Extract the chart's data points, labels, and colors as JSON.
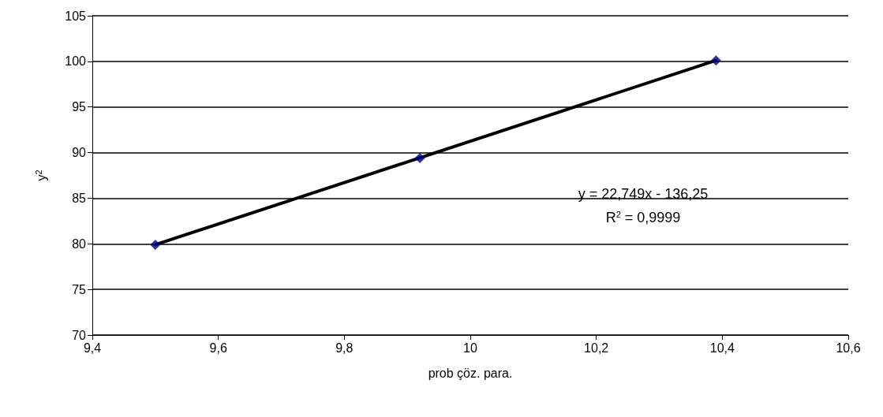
{
  "chart_data": {
    "type": "scatter",
    "xlabel": "prob çöz. para.",
    "ylabel": "y$^{2}$",
    "series": [
      {
        "color": "#000080",
        "marker": "diamond",
        "x": [
          9.5,
          9.92,
          10.39
        ],
        "values": [
          79.9,
          89.4,
          100.1
        ]
      },
      {
        "type": "line",
        "color": "#000000",
        "marker": "none",
        "line_style": "solid",
        "x": [
          9.5,
          10.39
        ],
        "values": [
          79.9,
          100.1
        ]
      }
    ],
    "xlim": [
      9.4,
      10.6
    ],
    "xticks": [
      {
        "value": 9.4,
        "label": "9,4"
      },
      {
        "value": 9.6,
        "label": "9,6"
      },
      {
        "value": 9.8,
        "label": "9,8"
      },
      10,
      {
        "value": 10.2,
        "label": "10,2"
      },
      {
        "value": 10.4,
        "label": "10,4"
      },
      {
        "value": 10.6,
        "label": "10,6"
      }
    ],
    "ylim": [
      70,
      105
    ],
    "yticks": [
      70,
      75,
      80,
      85,
      90,
      95,
      100,
      105
    ],
    "grid": "y",
    "annotations": [
      "y = 22,749x - 136,25",
      "R$^{2}$ = 0,9999"
    ]
  }
}
